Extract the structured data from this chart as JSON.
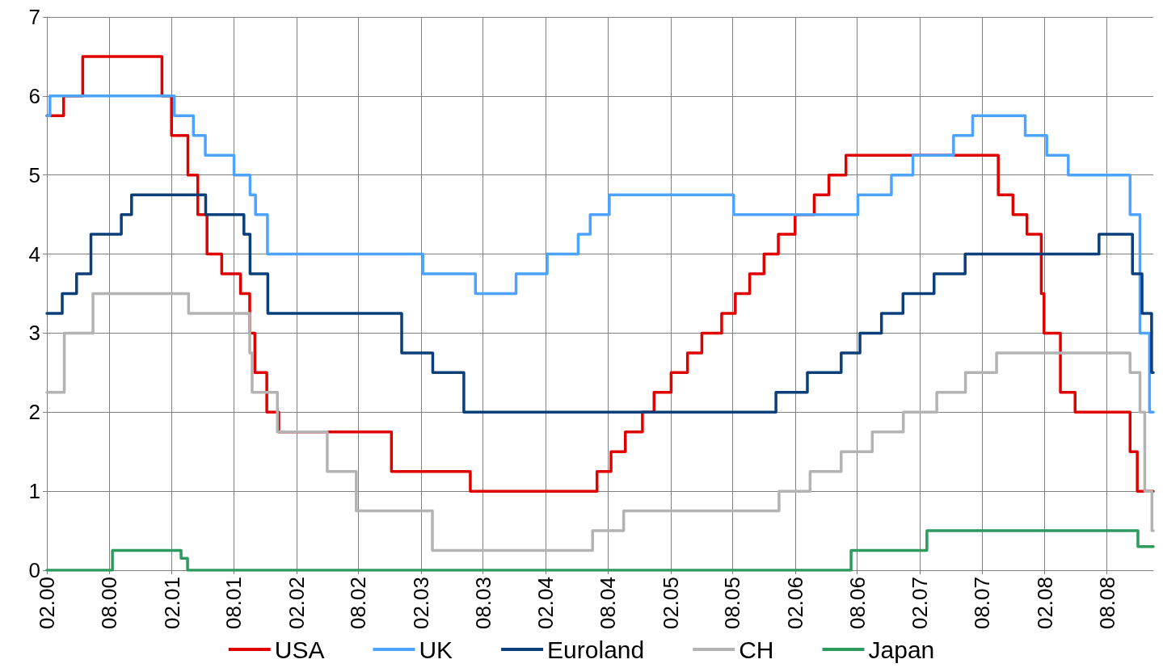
{
  "chart_data": {
    "type": "step",
    "xlim": [
      "2000-02-01",
      "2008-12-15"
    ],
    "xticks": [
      {
        "value": "2000-02-01",
        "label": "02.00"
      },
      {
        "value": "2000-08-01",
        "label": "08.00"
      },
      {
        "value": "2001-02-01",
        "label": "02.01"
      },
      {
        "value": "2001-08-01",
        "label": "08.01"
      },
      {
        "value": "2002-02-01",
        "label": "02.02"
      },
      {
        "value": "2002-08-01",
        "label": "08.02"
      },
      {
        "value": "2003-02-01",
        "label": "02.03"
      },
      {
        "value": "2003-08-01",
        "label": "08.03"
      },
      {
        "value": "2004-02-01",
        "label": "02.04"
      },
      {
        "value": "2004-08-01",
        "label": "08.04"
      },
      {
        "value": "2005-02-01",
        "label": "02.05"
      },
      {
        "value": "2005-08-01",
        "label": "08.05"
      },
      {
        "value": "2006-02-01",
        "label": "02.06"
      },
      {
        "value": "2006-08-01",
        "label": "08.06"
      },
      {
        "value": "2007-02-01",
        "label": "02.07"
      },
      {
        "value": "2007-08-01",
        "label": "08.07"
      },
      {
        "value": "2008-02-01",
        "label": "02.08"
      },
      {
        "value": "2008-08-01",
        "label": "08.08"
      }
    ],
    "ylim": [
      0,
      7
    ],
    "yticks": [
      0,
      1,
      2,
      3,
      4,
      5,
      6,
      7
    ],
    "grid": true,
    "legend": "bottom",
    "marker": "none",
    "line_style": "solid",
    "series": [
      {
        "name": "USA",
        "color": "#e00000",
        "x": [
          "2000-02-01",
          "2000-03-21",
          "2000-05-16",
          "2001-01-03",
          "2001-01-31",
          "2001-03-20",
          "2001-04-18",
          "2001-05-15",
          "2001-06-27",
          "2001-08-21",
          "2001-09-17",
          "2001-10-02",
          "2001-11-06",
          "2001-12-11",
          "2002-11-06",
          "2003-06-25",
          "2004-06-30",
          "2004-08-10",
          "2004-09-21",
          "2004-11-10",
          "2004-12-14",
          "2005-02-02",
          "2005-03-22",
          "2005-05-03",
          "2005-06-30",
          "2005-08-09",
          "2005-09-20",
          "2005-11-01",
          "2005-12-13",
          "2006-01-31",
          "2006-03-28",
          "2006-05-10",
          "2006-06-29",
          "2007-09-18",
          "2007-10-31",
          "2007-12-11",
          "2008-01-22",
          "2008-01-30",
          "2008-03-18",
          "2008-04-30",
          "2008-10-08",
          "2008-10-29",
          "2008-12-15"
        ],
        "values": [
          5.75,
          6,
          6.5,
          6,
          5.5,
          5,
          4.5,
          4,
          3.75,
          3.5,
          3,
          2.5,
          2,
          1.75,
          1.25,
          1,
          1.25,
          1.5,
          1.75,
          2,
          2.25,
          2.5,
          2.75,
          3,
          3.25,
          3.5,
          3.75,
          4,
          4.25,
          4.5,
          4.75,
          5,
          5.25,
          4.75,
          4.5,
          4.25,
          3.5,
          3,
          2.25,
          2,
          1.5,
          1,
          1
        ]
      },
      {
        "name": "UK",
        "color": "#4da3ff",
        "x": [
          "2000-02-01",
          "2000-02-10",
          "2001-02-08",
          "2001-04-05",
          "2001-05-10",
          "2001-08-02",
          "2001-09-18",
          "2001-10-04",
          "2001-11-08",
          "2003-02-06",
          "2003-07-10",
          "2003-11-06",
          "2004-02-05",
          "2004-05-06",
          "2004-06-10",
          "2004-08-05",
          "2005-08-04",
          "2006-08-03",
          "2006-11-09",
          "2007-01-11",
          "2007-05-10",
          "2007-07-05",
          "2007-12-06",
          "2008-02-07",
          "2008-04-10",
          "2008-10-08",
          "2008-11-06",
          "2008-12-04",
          "2008-12-15"
        ],
        "values": [
          5.75,
          6,
          5.75,
          5.5,
          5.25,
          5,
          4.75,
          4.5,
          4,
          3.75,
          3.5,
          3.75,
          4,
          4.25,
          4.5,
          4.75,
          4.5,
          4.75,
          5,
          5.25,
          5.5,
          5.75,
          5.5,
          5.25,
          5,
          4.5,
          3,
          2,
          2
        ]
      },
      {
        "name": "Euroland",
        "color": "#0b3f7a",
        "x": [
          "2000-02-01",
          "2000-03-17",
          "2000-04-28",
          "2000-06-09",
          "2000-09-06",
          "2000-10-06",
          "2001-05-11",
          "2001-08-31",
          "2001-09-18",
          "2001-11-09",
          "2002-12-06",
          "2003-03-07",
          "2003-06-06",
          "2005-12-06",
          "2006-03-08",
          "2006-06-15",
          "2006-08-09",
          "2006-10-11",
          "2006-12-13",
          "2007-03-14",
          "2007-06-13",
          "2008-07-09",
          "2008-10-15",
          "2008-11-12",
          "2008-12-10",
          "2008-12-15"
        ],
        "values": [
          3.25,
          3.5,
          3.75,
          4.25,
          4.5,
          4.75,
          4.5,
          4.25,
          3.75,
          3.25,
          2.75,
          2.5,
          2,
          2.25,
          2.5,
          2.75,
          3,
          3.25,
          3.5,
          3.75,
          4,
          4.25,
          3.75,
          3.25,
          2.5,
          2.5
        ]
      },
      {
        "name": "CH",
        "color": "#b3b3b3",
        "x": [
          "2000-02-01",
          "2000-03-23",
          "2000-06-15",
          "2001-03-22",
          "2001-09-17",
          "2001-09-24",
          "2001-12-07",
          "2002-05-02",
          "2002-07-26",
          "2003-03-06",
          "2004-06-17",
          "2004-09-16",
          "2005-12-15",
          "2006-03-16",
          "2006-06-15",
          "2006-09-14",
          "2006-12-14",
          "2007-03-22",
          "2007-06-14",
          "2007-09-13",
          "2008-10-08",
          "2008-11-06",
          "2008-11-20",
          "2008-12-11",
          "2008-12-15"
        ],
        "values": [
          2.25,
          3,
          3.5,
          3.25,
          2.75,
          2.25,
          1.75,
          1.25,
          0.75,
          0.25,
          0.5,
          0.75,
          1,
          1.25,
          1.5,
          1.75,
          2,
          2.25,
          2.5,
          2.75,
          2.5,
          2,
          1,
          0.5,
          0.5
        ]
      },
      {
        "name": "Japan",
        "color": "#2e9a5e",
        "x": [
          "2000-02-01",
          "2000-08-11",
          "2001-02-28",
          "2001-03-19",
          "2006-07-14",
          "2007-02-21",
          "2008-10-31",
          "2008-12-15"
        ],
        "values": [
          0,
          0.25,
          0.15,
          0,
          0.25,
          0.5,
          0.3,
          0.3
        ]
      }
    ]
  }
}
